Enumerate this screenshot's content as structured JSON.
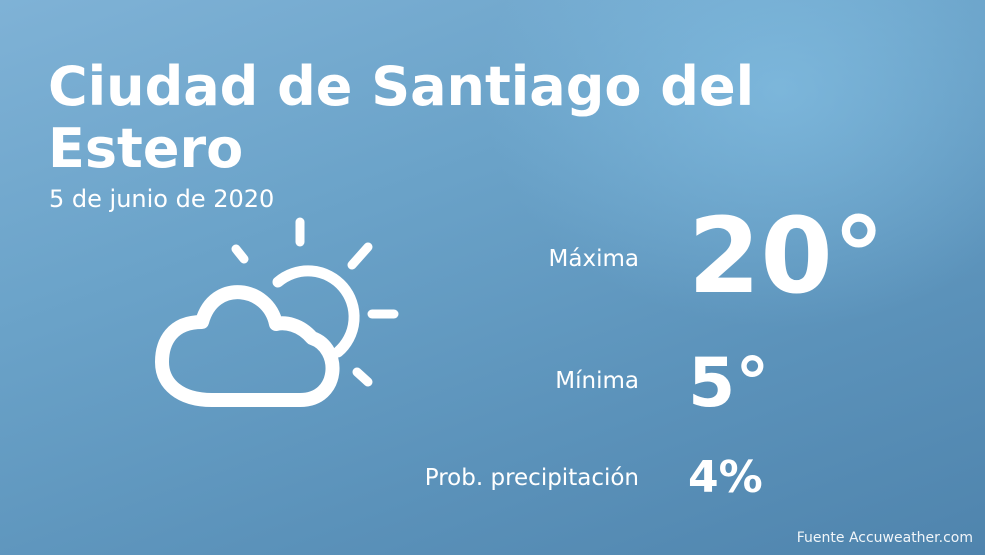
{
  "header": {
    "city": "Ciudad de Santiago del Estero",
    "date": "5 de junio de 2020"
  },
  "forecast": {
    "icon": "partly-cloudy-icon",
    "max_label": "Máxima",
    "max_value": "20°",
    "min_label": "Mínima",
    "min_value": "5°",
    "precip_label": "Prob. precipitación",
    "precip_value": "4%"
  },
  "footer": {
    "source": "Fuente Accuweather.com"
  },
  "colors": {
    "background_top": "#7fb2d6",
    "background_bottom": "#4f84ad",
    "text": "#ffffff"
  }
}
